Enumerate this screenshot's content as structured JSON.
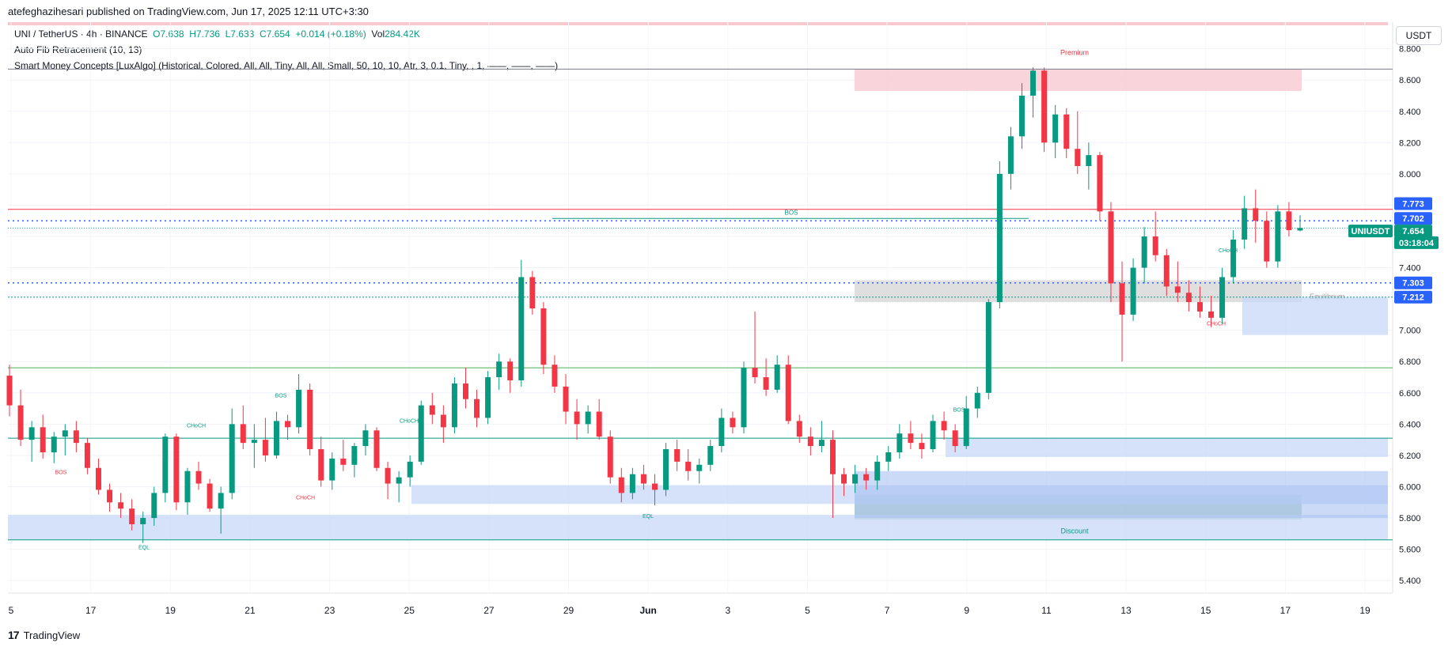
{
  "header": {
    "published": "atefeghazihesari published on TradingView.com, Jun 17, 2025 12:11 UTC+3:30"
  },
  "legend": {
    "symbol": "UNI / TetherUS · 4h · BINANCE",
    "o": "O7.638",
    "h": "H7.736",
    "l": "L7.633",
    "c": "C7.654",
    "chg": "+0.014 (+0.18%)",
    "vol_label": "Vol",
    "vol": "284.42K",
    "ind1": "Auto Fib Retracement (10, 13)",
    "ind2": "Smart Money Concepts [LuxAlgo] (Historical, Colored, All, All, Tiny, All, All, Small, 50, 10, 10, Atr, 3, 0.1, Tiny, , 1, ——, ——, ——)"
  },
  "currency_button": "USDT",
  "brand": {
    "logo": "17",
    "name": "TradingView"
  },
  "chart_data": {
    "type": "candlestick",
    "ylim": [
      5.32,
      8.97
    ],
    "y_ticks": [
      "8.800",
      "8.600",
      "8.400",
      "8.200",
      "8.000",
      "7.800",
      "7.600",
      "7.400",
      "7.200",
      "7.000",
      "6.800",
      "6.600",
      "6.400",
      "6.200",
      "6.000",
      "5.800",
      "5.600",
      "5.400"
    ],
    "x_ticks": [
      "5",
      "17",
      "19",
      "21",
      "23",
      "25",
      "27",
      "29",
      "Jun",
      "3",
      "5",
      "7",
      "9",
      "11",
      "13",
      "15",
      "17",
      "19"
    ],
    "price_labels": [
      {
        "text": "7.773",
        "color": "#2962ff"
      },
      {
        "text": "7.702",
        "color": "#2962ff"
      },
      {
        "text": "UNIUSDT",
        "color": "#089981"
      },
      {
        "text": "7.654",
        "color": "#089981"
      },
      {
        "text": "03:18:04",
        "color": "#089981"
      },
      {
        "text": "7.303",
        "color": "#2962ff"
      },
      {
        "text": "7.212",
        "color": "#2962ff"
      }
    ],
    "annotations": {
      "premium": "Premium",
      "discount": "Discount",
      "equilibrium": "Equilibrium",
      "bos": "BOS",
      "choch": "CHoCH",
      "eql": "EQL"
    },
    "colors": {
      "up": "#089981",
      "down": "#f23645",
      "premium": "#f8cdd3",
      "discount": "#c7d8f8",
      "equilibrium": "#d9d9d9"
    },
    "candles": [
      [
        6.71,
        6.78,
        6.45,
        6.52
      ],
      [
        6.52,
        6.62,
        6.26,
        6.3
      ],
      [
        6.3,
        6.42,
        6.16,
        6.38
      ],
      [
        6.38,
        6.46,
        6.18,
        6.22
      ],
      [
        6.22,
        6.35,
        6.15,
        6.32
      ],
      [
        6.32,
        6.4,
        6.2,
        6.36
      ],
      [
        6.36,
        6.42,
        6.22,
        6.28
      ],
      [
        6.28,
        6.31,
        6.08,
        6.12
      ],
      [
        6.12,
        6.18,
        5.95,
        5.98
      ],
      [
        5.98,
        6.02,
        5.84,
        5.9
      ],
      [
        5.9,
        5.96,
        5.8,
        5.86
      ],
      [
        5.86,
        5.92,
        5.72,
        5.76
      ],
      [
        5.76,
        5.84,
        5.64,
        5.8
      ],
      [
        5.8,
        6.0,
        5.75,
        5.96
      ],
      [
        5.96,
        6.34,
        5.9,
        6.32
      ],
      [
        6.32,
        6.34,
        5.85,
        5.9
      ],
      [
        5.9,
        6.12,
        5.82,
        6.1
      ],
      [
        6.1,
        6.16,
        5.98,
        6.02
      ],
      [
        6.02,
        6.05,
        5.84,
        5.86
      ],
      [
        5.86,
        6.0,
        5.7,
        5.96
      ],
      [
        5.96,
        6.5,
        5.92,
        6.4
      ],
      [
        6.4,
        6.52,
        6.24,
        6.28
      ],
      [
        6.28,
        6.4,
        6.12,
        6.3
      ],
      [
        6.3,
        6.44,
        6.16,
        6.2
      ],
      [
        6.2,
        6.48,
        6.18,
        6.42
      ],
      [
        6.42,
        6.46,
        6.3,
        6.38
      ],
      [
        6.38,
        6.72,
        6.34,
        6.62
      ],
      [
        6.62,
        6.66,
        6.2,
        6.24
      ],
      [
        6.24,
        6.32,
        6.0,
        6.04
      ],
      [
        6.04,
        6.22,
        5.98,
        6.18
      ],
      [
        6.18,
        6.3,
        6.1,
        6.14
      ],
      [
        6.14,
        6.28,
        6.06,
        6.26
      ],
      [
        6.26,
        6.4,
        6.2,
        6.36
      ],
      [
        6.36,
        6.38,
        6.1,
        6.12
      ],
      [
        6.12,
        6.16,
        5.92,
        6.02
      ],
      [
        6.02,
        6.1,
        5.9,
        6.06
      ],
      [
        6.06,
        6.2,
        6.0,
        6.16
      ],
      [
        6.16,
        6.55,
        6.14,
        6.52
      ],
      [
        6.52,
        6.6,
        6.4,
        6.46
      ],
      [
        6.46,
        6.52,
        6.28,
        6.38
      ],
      [
        6.38,
        6.7,
        6.34,
        6.66
      ],
      [
        6.66,
        6.76,
        6.5,
        6.56
      ],
      [
        6.56,
        6.62,
        6.38,
        6.44
      ],
      [
        6.44,
        6.74,
        6.4,
        6.7
      ],
      [
        6.7,
        6.85,
        6.62,
        6.8
      ],
      [
        6.8,
        6.82,
        6.6,
        6.68
      ],
      [
        6.68,
        7.45,
        6.64,
        7.34
      ],
      [
        7.34,
        7.38,
        7.1,
        7.14
      ],
      [
        7.14,
        7.18,
        6.72,
        6.78
      ],
      [
        6.78,
        6.84,
        6.6,
        6.64
      ],
      [
        6.64,
        6.72,
        6.4,
        6.48
      ],
      [
        6.48,
        6.56,
        6.3,
        6.4
      ],
      [
        6.4,
        6.52,
        6.34,
        6.48
      ],
      [
        6.48,
        6.56,
        6.3,
        6.32
      ],
      [
        6.32,
        6.36,
        6.02,
        6.06
      ],
      [
        6.06,
        6.12,
        5.9,
        5.96
      ],
      [
        5.96,
        6.12,
        5.92,
        6.08
      ],
      [
        6.08,
        6.14,
        5.98,
        6.02
      ],
      [
        6.02,
        6.08,
        5.88,
        5.98
      ],
      [
        5.98,
        6.28,
        5.94,
        6.24
      ],
      [
        6.24,
        6.3,
        6.1,
        6.16
      ],
      [
        6.16,
        6.24,
        6.04,
        6.1
      ],
      [
        6.1,
        6.18,
        6.02,
        6.14
      ],
      [
        6.14,
        6.3,
        6.1,
        6.26
      ],
      [
        6.26,
        6.5,
        6.22,
        6.44
      ],
      [
        6.44,
        6.48,
        6.34,
        6.38
      ],
      [
        6.38,
        6.8,
        6.34,
        6.76
      ],
      [
        6.76,
        7.12,
        6.66,
        6.7
      ],
      [
        6.7,
        6.82,
        6.58,
        6.62
      ],
      [
        6.62,
        6.84,
        6.6,
        6.78
      ],
      [
        6.78,
        6.84,
        6.4,
        6.42
      ],
      [
        6.42,
        6.46,
        6.28,
        6.32
      ],
      [
        6.32,
        6.38,
        6.2,
        6.26
      ],
      [
        6.26,
        6.42,
        6.22,
        6.3
      ],
      [
        6.3,
        6.36,
        5.8,
        6.08
      ],
      [
        6.08,
        6.12,
        5.94,
        6.02
      ],
      [
        6.02,
        6.14,
        5.96,
        6.08
      ],
      [
        6.08,
        6.12,
        5.98,
        6.04
      ],
      [
        6.04,
        6.2,
        5.98,
        6.16
      ],
      [
        6.16,
        6.26,
        6.1,
        6.22
      ],
      [
        6.22,
        6.4,
        6.18,
        6.34
      ],
      [
        6.34,
        6.42,
        6.24,
        6.28
      ],
      [
        6.28,
        6.34,
        6.18,
        6.24
      ],
      [
        6.24,
        6.46,
        6.22,
        6.42
      ],
      [
        6.42,
        6.48,
        6.3,
        6.36
      ],
      [
        6.36,
        6.4,
        6.22,
        6.26
      ],
      [
        6.26,
        6.58,
        6.24,
        6.5
      ],
      [
        6.5,
        6.64,
        6.44,
        6.6
      ],
      [
        6.6,
        7.2,
        6.56,
        7.18
      ],
      [
        7.18,
        8.08,
        7.14,
        8.0
      ],
      [
        8.0,
        8.3,
        7.9,
        8.24
      ],
      [
        8.24,
        8.58,
        8.16,
        8.5
      ],
      [
        8.5,
        8.68,
        8.36,
        8.66
      ],
      [
        8.66,
        8.68,
        8.14,
        8.2
      ],
      [
        8.2,
        8.44,
        8.1,
        8.38
      ],
      [
        8.38,
        8.42,
        8.1,
        8.16
      ],
      [
        8.16,
        8.4,
        8.0,
        8.05
      ],
      [
        8.05,
        8.2,
        7.9,
        8.12
      ],
      [
        8.12,
        8.14,
        7.7,
        7.76
      ],
      [
        7.76,
        7.82,
        7.18,
        7.3
      ],
      [
        7.3,
        7.44,
        6.8,
        7.1
      ],
      [
        7.1,
        7.46,
        7.06,
        7.4
      ],
      [
        7.4,
        7.66,
        7.3,
        7.6
      ],
      [
        7.6,
        7.76,
        7.44,
        7.48
      ],
      [
        7.48,
        7.52,
        7.22,
        7.28
      ],
      [
        7.28,
        7.44,
        7.18,
        7.24
      ],
      [
        7.24,
        7.32,
        7.12,
        7.18
      ],
      [
        7.18,
        7.28,
        7.08,
        7.12
      ],
      [
        7.12,
        7.22,
        7.02,
        7.08
      ],
      [
        7.08,
        7.4,
        7.04,
        7.34
      ],
      [
        7.34,
        7.64,
        7.3,
        7.58
      ],
      [
        7.58,
        7.86,
        7.52,
        7.78
      ],
      [
        7.78,
        7.9,
        7.56,
        7.7
      ],
      [
        7.7,
        7.76,
        7.4,
        7.44
      ],
      [
        7.44,
        7.8,
        7.4,
        7.76
      ],
      [
        7.76,
        7.82,
        7.6,
        7.64
      ],
      [
        7.638,
        7.736,
        7.633,
        7.654
      ]
    ]
  }
}
